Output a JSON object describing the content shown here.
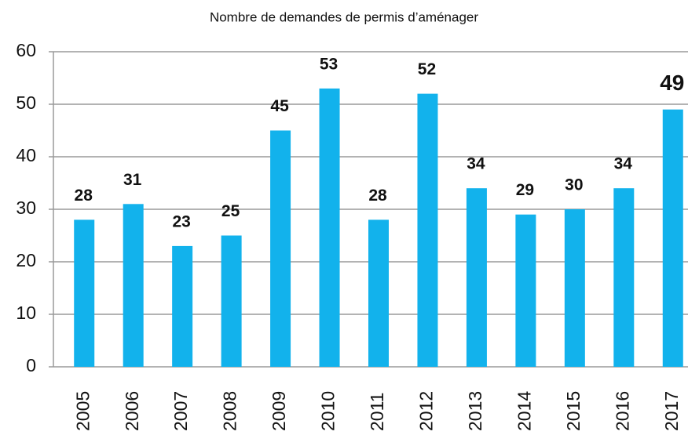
{
  "chart_data": {
    "type": "bar",
    "title": "Nombre de demandes de permis d’aménager",
    "categories": [
      "2005",
      "2006",
      "2007",
      "2008",
      "2009",
      "2010",
      "2011",
      "2012",
      "2013",
      "2014",
      "2015",
      "2016",
      "2017"
    ],
    "values": [
      28,
      31,
      23,
      25,
      45,
      53,
      28,
      52,
      34,
      29,
      30,
      34,
      49
    ],
    "color": "#12b2ec",
    "ylim": [
      0,
      60
    ],
    "yticks": [
      0,
      10,
      20,
      30,
      40,
      50,
      60
    ],
    "grid": true
  }
}
